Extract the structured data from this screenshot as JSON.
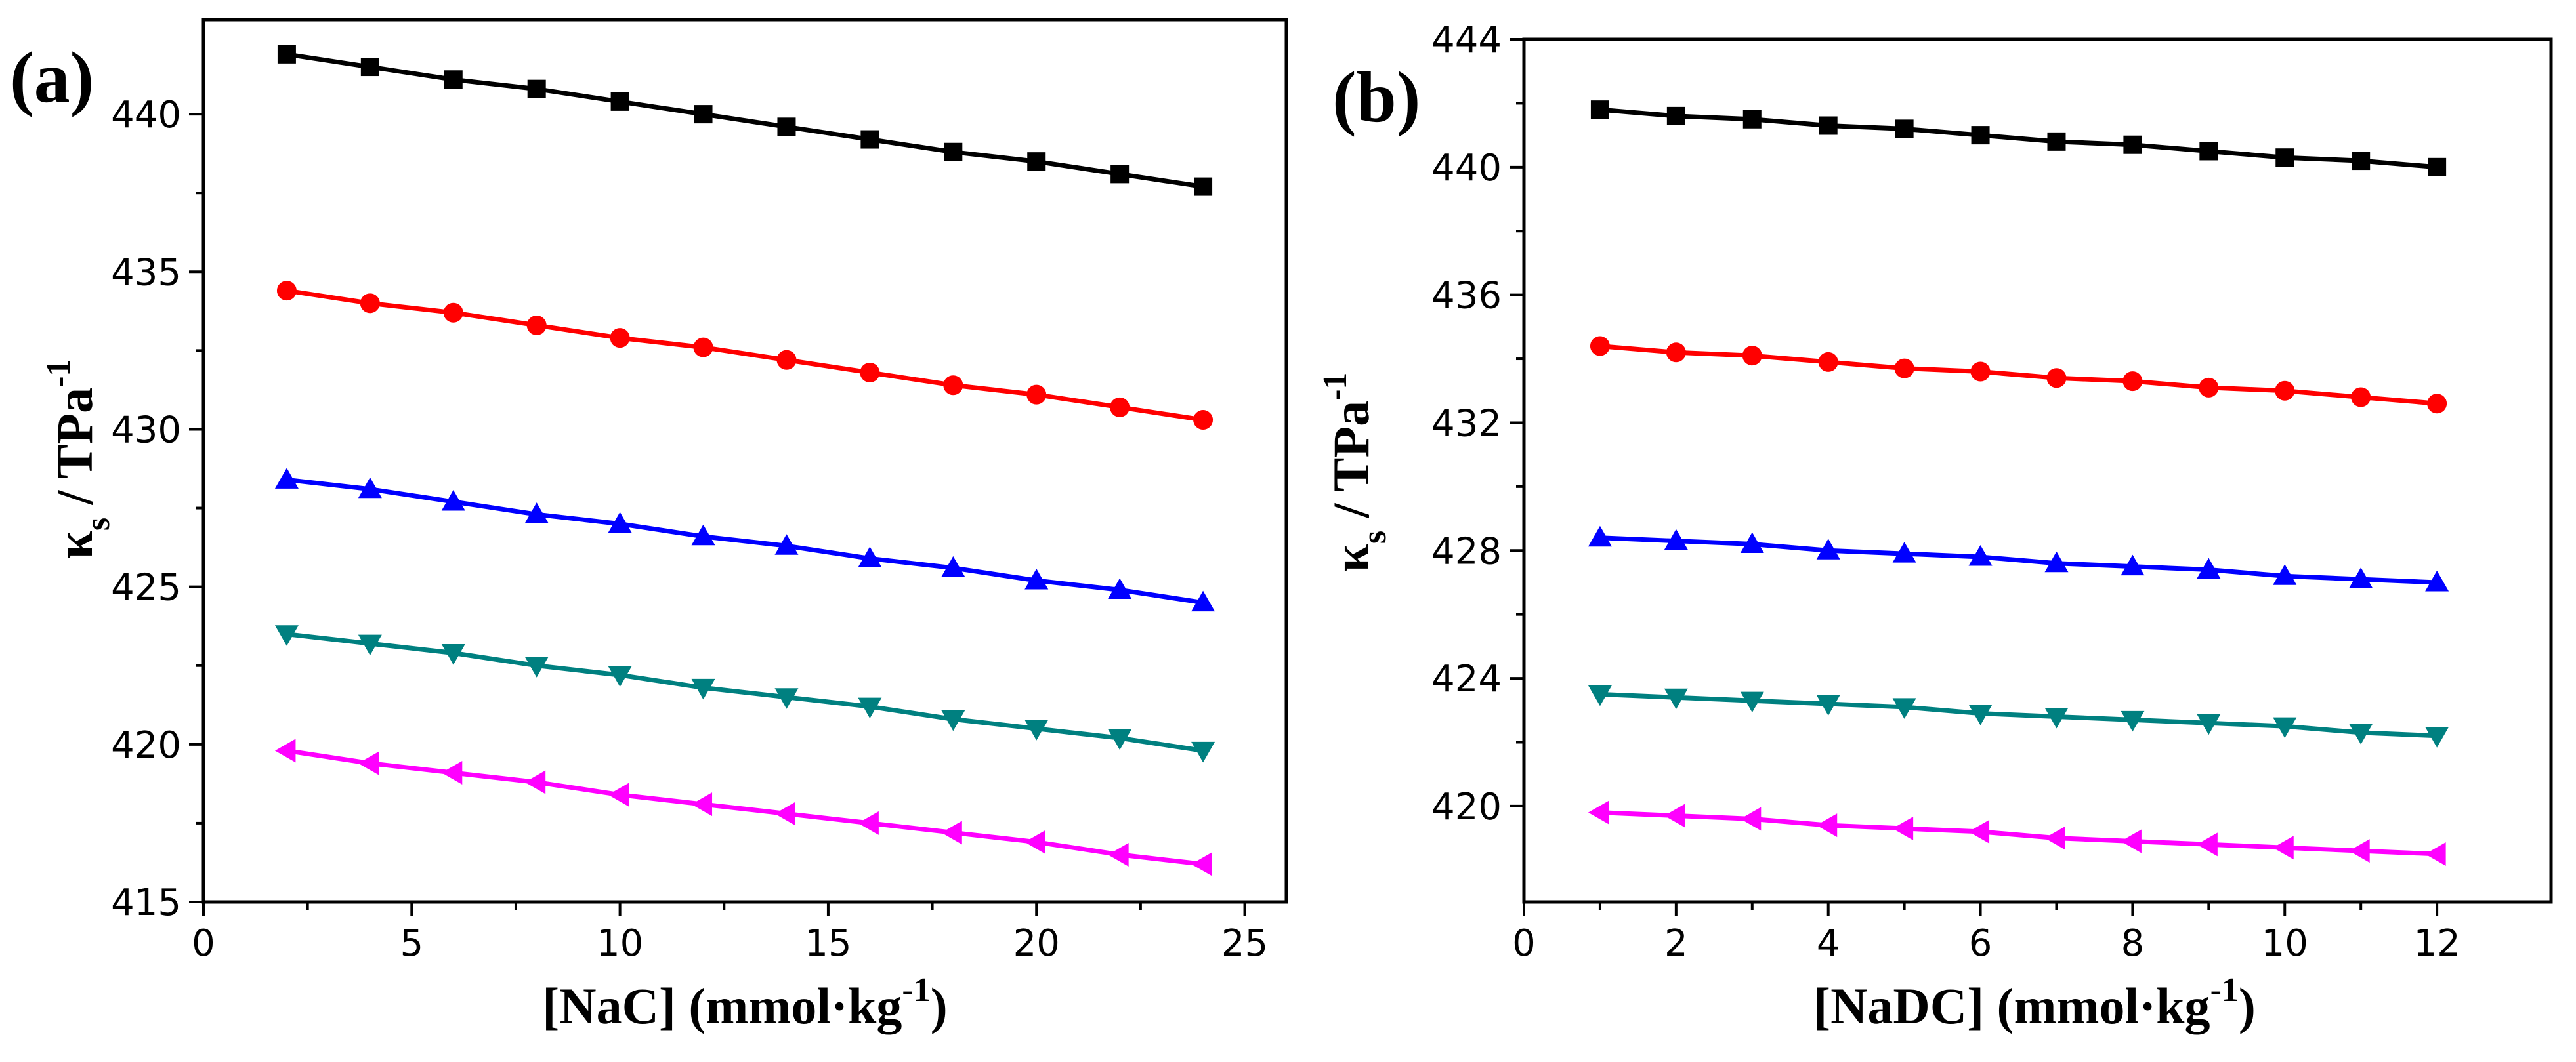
{
  "chart_data": [
    {
      "panel_label": "(a)",
      "type": "line",
      "xlabel": "[NaC] (mmol·kg",
      "xlabel_sup": "-1",
      "xlabel_close": ")",
      "ylabel_symbol": "κ",
      "ylabel_sub": "s",
      "ylabel_unit": " / TPa",
      "ylabel_sup": "-1",
      "xlim": [
        0,
        26
      ],
      "ylim": [
        415,
        443
      ],
      "xticks": [
        0,
        5,
        10,
        15,
        20,
        25
      ],
      "xtick_labels": [
        "0",
        "5",
        "10",
        "15",
        "20",
        "25"
      ],
      "yticks": [
        415,
        420,
        425,
        430,
        435,
        440
      ],
      "ytick_labels": [
        "415",
        "420",
        "425",
        "430",
        "435",
        "440"
      ],
      "x": [
        2,
        4,
        6,
        8,
        10,
        12,
        14,
        16,
        18,
        20,
        22,
        24
      ],
      "series": [
        {
          "color": "#000000",
          "marker": "square",
          "values": [
            441.9,
            441.5,
            441.1,
            440.8,
            440.4,
            440.0,
            439.6,
            439.2,
            438.8,
            438.5,
            438.1,
            437.7
          ]
        },
        {
          "color": "#ff0000",
          "marker": "circle",
          "values": [
            434.4,
            434.0,
            433.7,
            433.3,
            432.9,
            432.6,
            432.2,
            431.8,
            431.4,
            431.1,
            430.7,
            430.3
          ]
        },
        {
          "color": "#0000ff",
          "marker": "triangle-up",
          "values": [
            428.4,
            428.1,
            427.7,
            427.3,
            427.0,
            426.6,
            426.3,
            425.9,
            425.6,
            425.2,
            424.9,
            424.5
          ]
        },
        {
          "color": "#008080",
          "marker": "triangle-down",
          "values": [
            423.5,
            423.2,
            422.9,
            422.5,
            422.2,
            421.8,
            421.5,
            421.2,
            420.8,
            420.5,
            420.2,
            419.8
          ]
        },
        {
          "color": "#ff00ff",
          "marker": "triangle-left",
          "values": [
            419.8,
            419.4,
            419.1,
            418.8,
            418.4,
            418.1,
            417.8,
            417.5,
            417.2,
            416.9,
            416.5,
            416.2
          ]
        }
      ]
    },
    {
      "panel_label": "(b)",
      "type": "line",
      "xlabel": "[NaDC] (mmol·kg",
      "xlabel_sup": "-1",
      "xlabel_close": ")",
      "ylabel_symbol": "κ",
      "ylabel_sub": "s",
      "ylabel_unit": " / TPa",
      "ylabel_sup": "-1",
      "xlim": [
        0,
        13.5
      ],
      "ylim": [
        417,
        444
      ],
      "xticks": [
        0,
        2,
        4,
        6,
        8,
        10,
        12
      ],
      "xtick_labels": [
        "0",
        "2",
        "4",
        "6",
        "8",
        "10",
        "12"
      ],
      "yticks": [
        420,
        424,
        428,
        432,
        436,
        440,
        444
      ],
      "ytick_labels": [
        "420",
        "424",
        "428",
        "432",
        "436",
        "440",
        "444"
      ],
      "x": [
        1,
        2,
        3,
        4,
        5,
        6,
        7,
        8,
        9,
        10,
        11,
        12
      ],
      "series": [
        {
          "color": "#000000",
          "marker": "square",
          "values": [
            441.8,
            441.6,
            441.5,
            441.3,
            441.2,
            441.0,
            440.8,
            440.7,
            440.5,
            440.3,
            440.2,
            440.0
          ]
        },
        {
          "color": "#ff0000",
          "marker": "circle",
          "values": [
            434.4,
            434.2,
            434.1,
            433.9,
            433.7,
            433.6,
            433.4,
            433.3,
            433.1,
            433.0,
            432.8,
            432.6
          ]
        },
        {
          "color": "#0000ff",
          "marker": "triangle-up",
          "values": [
            428.4,
            428.3,
            428.2,
            428.0,
            427.9,
            427.8,
            427.6,
            427.5,
            427.4,
            427.2,
            427.1,
            427.0
          ]
        },
        {
          "color": "#008080",
          "marker": "triangle-down",
          "values": [
            423.5,
            423.4,
            423.3,
            423.2,
            423.1,
            422.9,
            422.8,
            422.7,
            422.6,
            422.5,
            422.3,
            422.2
          ]
        },
        {
          "color": "#ff00ff",
          "marker": "triangle-left",
          "values": [
            419.8,
            419.7,
            419.6,
            419.4,
            419.3,
            419.2,
            419.0,
            418.9,
            418.8,
            418.7,
            418.6,
            418.5
          ]
        }
      ]
    }
  ]
}
